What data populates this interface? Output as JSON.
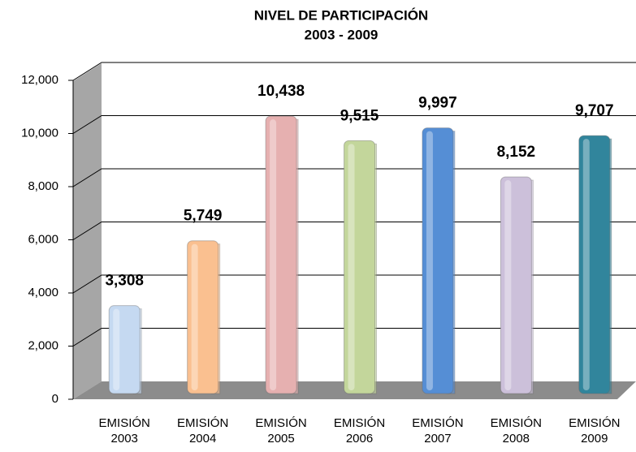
{
  "chart_data": {
    "type": "bar",
    "title": "NIVEL DE PARTICIPACIÓN",
    "subtitle": "2003 - 2009",
    "categories": [
      "EMISIÓN 2003",
      "EMISIÓN 2004",
      "EMISIÓN 2005",
      "EMISIÓN 2006",
      "EMISIÓN 2007",
      "EMISIÓN 2008",
      "EMISIÓN 2009"
    ],
    "values": [
      3308,
      5749,
      10438,
      9515,
      9997,
      8152,
      9707
    ],
    "value_labels": [
      "3,308",
      "5,749",
      "10,438",
      "9,515",
      "9,997",
      "8,152",
      "9,707"
    ],
    "colors": [
      "#c5d9f1",
      "#fac090",
      "#e6b0b0",
      "#c3d69b",
      "#558ed5",
      "#ccc0da",
      "#31859c"
    ],
    "ylim": [
      0,
      12000
    ],
    "yticks": [
      0,
      {
        "value": 2000,
        "label": "2,000"
      },
      {
        "value": 4000,
        "label": "4,000"
      },
      {
        "value": 6000,
        "label": "6,000"
      },
      {
        "value": 8000,
        "label": "8,000"
      },
      {
        "value": 10000,
        "label": "10,000"
      },
      {
        "value": 12000,
        "label": "12,000"
      }
    ],
    "grid": true
  }
}
